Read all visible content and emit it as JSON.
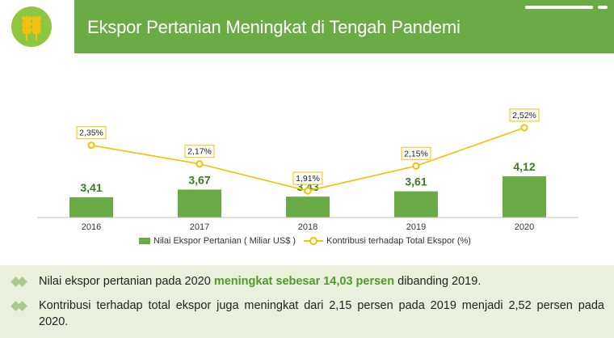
{
  "header": {
    "title": "Ekspor Pertanian Meningkat di Tengah Pandemi",
    "logo_icon": "wheat-icon"
  },
  "colors": {
    "bar": "#6aab45",
    "line": "#f2c200",
    "highlight": "#4e9a2a"
  },
  "chart_data": {
    "type": "bar",
    "categories": [
      "2016",
      "2017",
      "2018",
      "2019",
      "2020"
    ],
    "series": [
      {
        "name": "Nilai Ekspor Pertanian ( Miliar US$ )",
        "type": "bar",
        "values": [
          3.41,
          3.67,
          3.43,
          3.61,
          4.12
        ],
        "labels": [
          "3,41",
          "3,67",
          "3,43",
          "3,61",
          "4,12"
        ]
      },
      {
        "name": "Kontribusi terhadap Total Ekspor (%)",
        "type": "line",
        "values": [
          2.35,
          2.17,
          1.91,
          2.15,
          2.52
        ],
        "labels": [
          "2,35%",
          "2,17%",
          "1,91%",
          "2,15%",
          "2,52%"
        ]
      }
    ],
    "legend": "bottom"
  },
  "notes": {
    "bullet1_pre": "Nilai ekspor pertanian pada 2020 ",
    "bullet1_highlight": "meningkat sebesar 14,03 persen",
    "bullet1_post": " dibanding 2019.",
    "bullet2": "Kontribusi terhadap total ekspor juga meningkat dari 2,15 persen pada 2019 menjadi 2,52 persen pada 2020."
  }
}
